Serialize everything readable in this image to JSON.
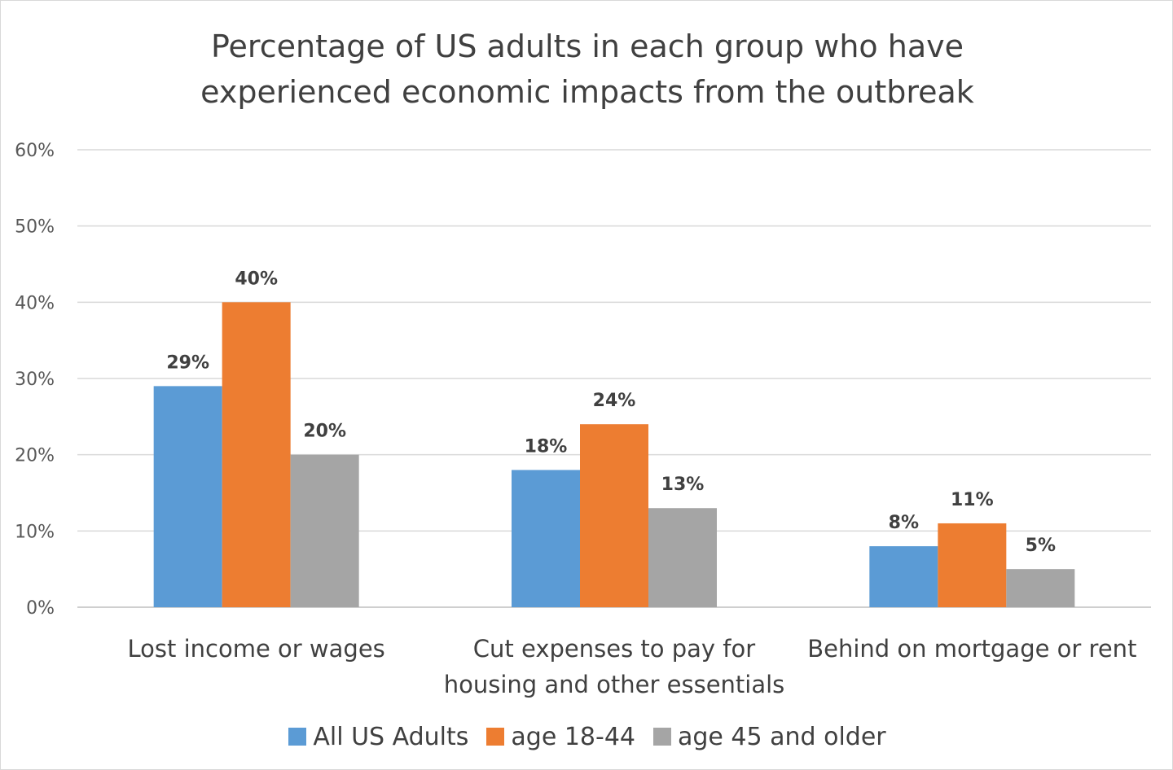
{
  "chart_data": {
    "type": "bar",
    "title": "Percentage of US adults in each group who have\nexperienced economic impacts from the outbreak",
    "categories": [
      [
        "Lost income or wages"
      ],
      [
        "Cut expenses to pay for",
        "housing and other essentials"
      ],
      [
        "Behind on mortgage or rent"
      ]
    ],
    "series": [
      {
        "name": "All US Adults",
        "color": "#5b9bd5",
        "values": [
          29,
          18,
          8
        ],
        "labels": [
          "29%",
          "18%",
          "8%"
        ]
      },
      {
        "name": "age 18-44",
        "color": "#ed7d31",
        "values": [
          40,
          24,
          11
        ],
        "labels": [
          "40%",
          "24%",
          "11%"
        ]
      },
      {
        "name": "age 45 and older",
        "color": "#a5a5a5",
        "values": [
          20,
          13,
          5
        ],
        "labels": [
          "20%",
          "13%",
          "5%"
        ]
      }
    ],
    "ylim": [
      0,
      60
    ],
    "yticks": [
      0,
      10,
      20,
      30,
      40,
      50,
      60
    ],
    "ytick_labels": [
      "0%",
      "10%",
      "20%",
      "30%",
      "40%",
      "50%",
      "60%"
    ],
    "grid": true,
    "legend_position": "bottom",
    "xlabel": "",
    "ylabel": ""
  }
}
